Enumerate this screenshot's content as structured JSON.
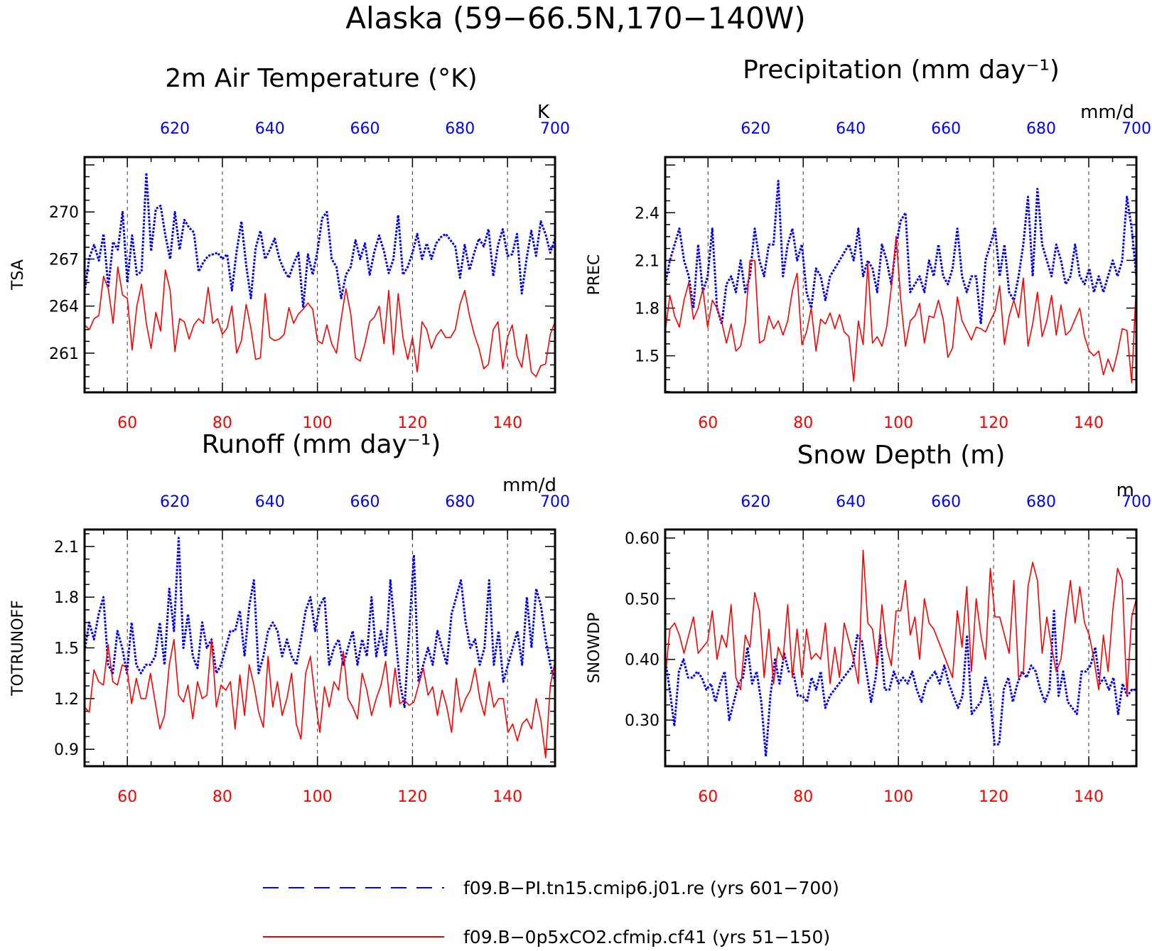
{
  "figure": {
    "title": "Alaska (59−66.5N,170−140W)"
  },
  "legend": {
    "placement": "bottom",
    "entries": [
      {
        "label": "f09.B−PI.tn15.cmip6.j01.re (yrs 601−700)",
        "color": "#0000ff",
        "style": "dashed"
      },
      {
        "label": "f09.B−0p5xCO2.cfmip.cf41 (yrs 51−150)",
        "color": "#ff0000",
        "style": "solid"
      }
    ]
  },
  "chart_data": [
    {
      "type": "line",
      "title": "2m Air Temperature (°K)",
      "ylabel": "TSA",
      "units": "K",
      "xlim": [
        51,
        150
      ],
      "x2lim": [
        601,
        700
      ],
      "ylim": [
        258.5,
        273.5
      ],
      "yticks": [
        261,
        264,
        267,
        270
      ],
      "xticks": [
        60,
        80,
        100,
        120,
        140
      ],
      "x2ticks": [
        620,
        640,
        660,
        680,
        700
      ],
      "grid": "vertical dashed at x ticks",
      "series": [
        {
          "name": "f09.B−PI.tn15.cmip6.j01.re (yrs 601−700)",
          "axis": "top",
          "color": "#0000ff",
          "dash": true,
          "values": [
            264.9,
            267.1,
            267.9,
            266.9,
            268.6,
            265.2,
            268.1,
            267.6,
            270.0,
            265.5,
            268.5,
            266.0,
            266.2,
            272.5,
            267.5,
            270.2,
            270.4,
            268.5,
            267.0,
            270.0,
            267.6,
            269.5,
            269.0,
            268.7,
            266.2,
            266.8,
            267.2,
            267.3,
            267.4,
            267.0,
            267.3,
            265.0,
            267.5,
            269.4,
            266.6,
            264.5,
            267.7,
            268.8,
            267.0,
            267.6,
            268.3,
            267.0,
            266.3,
            265.8,
            266.7,
            267.4,
            263.9,
            267.3,
            266.0,
            267.5,
            269.6,
            270.0,
            267.0,
            266.5,
            264.5,
            266.0,
            266.5,
            268.2,
            267.0,
            268.0,
            266.0,
            267.5,
            268.5,
            267.5,
            266.1,
            267.0,
            269.8,
            266.0,
            266.5,
            267.4,
            268.6,
            267.0,
            268.0,
            267.0,
            268.0,
            268.4,
            268.6,
            268.2,
            267.8,
            265.8,
            267.9,
            266.3,
            267.4,
            268.3,
            267.8,
            268.9,
            265.9,
            267.9,
            268.9,
            267.2,
            267.3,
            268.6,
            264.8,
            267.0,
            268.8,
            267.2,
            269.4,
            268.6,
            267.4,
            268.3
          ]
        },
        {
          "name": "f09.B−0p5xCO2.cfmip.cf41 (yrs 51−150)",
          "axis": "bottom",
          "color": "#ff0000",
          "dash": false,
          "values": [
            262.8,
            262.5,
            263.2,
            263.4,
            265.9,
            265.1,
            262.9,
            266.5,
            264.7,
            264.5,
            261.2,
            264.0,
            265.4,
            262.9,
            261.3,
            263.6,
            262.4,
            266.3,
            265.0,
            261.1,
            263.2,
            263.0,
            261.9,
            262.8,
            263.2,
            262.9,
            265.2,
            262.9,
            263.2,
            262.2,
            262.6,
            264.0,
            261.0,
            261.8,
            264.1,
            262.6,
            260.6,
            260.7,
            264.8,
            262.0,
            261.8,
            261.9,
            262.2,
            263.9,
            262.9,
            263.5,
            263.8,
            264.2,
            263.8,
            261.8,
            261.6,
            262.8,
            261.6,
            261.0,
            263.2,
            265.1,
            263.5,
            260.7,
            260.5,
            261.6,
            263.0,
            263.3,
            264.0,
            261.6,
            265.0,
            260.9,
            264.8,
            262.0,
            260.6,
            262.0,
            259.8,
            263.0,
            262.5,
            261.3,
            262.1,
            262.5,
            262.0,
            262.0,
            262.5,
            264.1,
            265.0,
            263.4,
            262.2,
            261.3,
            260.0,
            260.3,
            262.5,
            263.0,
            260.0,
            262.0,
            262.8,
            260.8,
            260.1,
            262.2,
            259.8,
            259.5,
            260.2,
            260.3,
            262.2,
            263.0
          ]
        }
      ]
    },
    {
      "type": "line",
      "title": "Precipitation (mm day⁻¹)",
      "ylabel": "PREC",
      "units": "mm/d",
      "xlim": [
        51,
        150
      ],
      "x2lim": [
        601,
        700
      ],
      "ylim": [
        1.27,
        2.75
      ],
      "yticks": [
        1.5,
        1.8,
        2.1,
        2.4
      ],
      "xticks": [
        60,
        80,
        100,
        120,
        140
      ],
      "x2ticks": [
        620,
        640,
        660,
        680,
        700
      ],
      "grid": "vertical dashed at x ticks",
      "series": [
        {
          "name": "f09.B−PI.tn15.cmip6.j01.re (yrs 601−700)",
          "axis": "top",
          "color": "#0000ff",
          "dash": true,
          "values": [
            1.95,
            2.1,
            2.2,
            2.3,
            2.1,
            2.0,
            1.8,
            2.2,
            1.9,
            2.0,
            2.3,
            1.8,
            1.7,
            1.95,
            2.0,
            1.9,
            2.1,
            1.9,
            2.0,
            2.3,
            2.1,
            2.0,
            2.2,
            2.2,
            2.6,
            2.0,
            2.2,
            2.3,
            2.1,
            2.2,
            1.9,
            1.8,
            2.05,
            2.0,
            1.85,
            2.0,
            2.05,
            2.1,
            2.15,
            2.2,
            2.1,
            2.3,
            2.0,
            2.1,
            2.05,
            1.9,
            2.2,
            2.1,
            1.95,
            2.2,
            2.35,
            2.4,
            1.9,
            1.95,
            2.0,
            1.9,
            2.1,
            2.0,
            2.2,
            2.0,
            1.95,
            2.05,
            2.3,
            2.0,
            1.9,
            2.0,
            2.0,
            1.7,
            2.1,
            2.2,
            2.3,
            2.0,
            2.2,
            1.9,
            1.85,
            2.0,
            2.2,
            2.5,
            2.0,
            2.55,
            2.2,
            2.1,
            2.0,
            2.2,
            2.1,
            1.95,
            2.0,
            2.2,
            2.0,
            1.95,
            2.05,
            1.9,
            2.0,
            1.9,
            2.0,
            2.1,
            2.0,
            2.1,
            2.5,
            2.3,
            2.0
          ]
        },
        {
          "name": "f09.B−0p5xCO2.cfmip.cf41 (yrs 51−150)",
          "axis": "bottom",
          "color": "#ff0000",
          "dash": false,
          "values": [
            1.65,
            1.88,
            1.75,
            1.68,
            1.85,
            1.96,
            1.73,
            1.8,
            1.92,
            1.68,
            1.85,
            1.8,
            1.71,
            1.58,
            1.7,
            1.53,
            1.56,
            1.71,
            2.1,
            2.1,
            1.58,
            1.6,
            1.75,
            1.67,
            1.72,
            1.63,
            1.72,
            1.91,
            2.02,
            1.57,
            1.65,
            1.8,
            1.53,
            1.73,
            1.7,
            1.77,
            1.67,
            1.76,
            1.65,
            1.62,
            1.34,
            1.72,
            1.57,
            2.08,
            1.58,
            1.62,
            1.56,
            1.68,
            1.93,
            2.25,
            1.85,
            1.56,
            1.72,
            1.75,
            1.83,
            1.58,
            1.75,
            1.74,
            1.85,
            1.73,
            1.49,
            1.55,
            1.87,
            1.72,
            1.66,
            1.6,
            1.68,
            1.67,
            1.65,
            1.72,
            1.78,
            1.94,
            1.57,
            1.75,
            1.85,
            1.74,
            1.99,
            1.56,
            1.7,
            1.9,
            1.62,
            1.72,
            1.88,
            1.63,
            1.82,
            1.63,
            1.66,
            1.73,
            1.8,
            1.62,
            1.53,
            1.5,
            1.53,
            1.38,
            1.48,
            1.4,
            1.52,
            1.67,
            1.66,
            1.33,
            1.96
          ]
        }
      ]
    },
    {
      "type": "line",
      "title": "Runoff (mm day⁻¹)",
      "ylabel": "TOTRUNOFF",
      "units": "mm/d",
      "xlim": [
        51,
        150
      ],
      "x2lim": [
        601,
        700
      ],
      "ylim": [
        0.8,
        2.2
      ],
      "yticks": [
        0.9,
        1.2,
        1.5,
        1.8,
        2.1
      ],
      "xticks": [
        60,
        80,
        100,
        120,
        140
      ],
      "x2ticks": [
        620,
        640,
        660,
        680,
        700
      ],
      "grid": "vertical dashed at x ticks",
      "series": [
        {
          "name": "f09.B−PI.tn15.cmip6.j01.re (yrs 601−700)",
          "axis": "top",
          "color": "#0000ff",
          "dash": true,
          "values": [
            1.48,
            1.65,
            1.55,
            1.7,
            1.8,
            1.4,
            1.35,
            1.6,
            1.5,
            1.35,
            1.65,
            1.4,
            1.35,
            1.4,
            1.4,
            1.45,
            1.65,
            1.4,
            1.85,
            1.6,
            2.15,
            1.5,
            1.7,
            1.45,
            1.38,
            1.65,
            1.5,
            1.55,
            1.35,
            1.4,
            1.5,
            1.6,
            1.6,
            1.72,
            1.45,
            1.75,
            1.9,
            1.35,
            1.45,
            1.6,
            1.65,
            1.6,
            1.45,
            1.55,
            1.45,
            1.4,
            1.55,
            1.72,
            1.8,
            1.6,
            1.75,
            1.8,
            1.4,
            1.5,
            1.55,
            1.4,
            1.5,
            1.6,
            1.4,
            1.55,
            1.45,
            1.8,
            1.45,
            1.6,
            1.45,
            1.9,
            1.6,
            1.3,
            1.15,
            1.6,
            2.05,
            1.3,
            1.4,
            1.5,
            1.4,
            1.6,
            1.5,
            1.4,
            1.7,
            1.8,
            1.9,
            1.65,
            1.5,
            1.55,
            1.4,
            1.5,
            1.9,
            1.4,
            1.6,
            1.3,
            1.4,
            1.5,
            1.6,
            1.4,
            1.8,
            1.5,
            1.85,
            1.75,
            1.55,
            1.4,
            1.3
          ]
        },
        {
          "name": "f09.B−0p5xCO2.cfmip.cf41 (yrs 51−150)",
          "axis": "bottom",
          "color": "#ff0000",
          "dash": false,
          "values": [
            1.15,
            1.12,
            1.37,
            1.3,
            1.28,
            1.52,
            1.3,
            1.28,
            1.4,
            1.38,
            1.17,
            1.32,
            1.2,
            1.2,
            1.35,
            1.18,
            1.02,
            1.1,
            1.4,
            1.55,
            1.22,
            1.18,
            1.28,
            1.08,
            1.3,
            1.2,
            1.22,
            1.55,
            1.15,
            1.28,
            1.25,
            1.3,
            1.02,
            1.34,
            1.1,
            1.4,
            1.28,
            1.12,
            1.03,
            1.45,
            1.15,
            1.3,
            1.1,
            1.2,
            1.35,
            1.05,
            0.96,
            1.35,
            1.45,
            1.2,
            1.0,
            1.27,
            1.15,
            1.3,
            1.25,
            1.48,
            1.2,
            1.15,
            1.08,
            1.35,
            1.25,
            1.1,
            1.2,
            1.28,
            1.42,
            1.15,
            1.38,
            1.17,
            1.19,
            1.16,
            1.18,
            1.28,
            1.38,
            1.22,
            1.27,
            1.1,
            1.25,
            1.15,
            1.0,
            1.32,
            1.12,
            1.2,
            1.25,
            1.38,
            1.2,
            1.1,
            1.3,
            1.15,
            1.2,
            1.2,
            1.0,
            1.05,
            0.95,
            1.05,
            1.08,
            1.02,
            1.2,
            1.07,
            0.85,
            1.28,
            1.42
          ]
        }
      ]
    },
    {
      "type": "line",
      "title": "Snow Depth (m)",
      "ylabel": "SNOWDP",
      "units": "m",
      "xlim": [
        51,
        150
      ],
      "x2lim": [
        601,
        700
      ],
      "ylim": [
        0.224,
        0.614
      ],
      "yticks": [
        0.3,
        0.4,
        0.5,
        0.6
      ],
      "xticks": [
        60,
        80,
        100,
        120,
        140
      ],
      "x2ticks": [
        620,
        640,
        660,
        680,
        700
      ],
      "grid": "vertical dashed at x ticks",
      "series": [
        {
          "name": "f09.B−PI.tn15.cmip6.j01.re (yrs 601−700)",
          "axis": "top",
          "color": "#0000ff",
          "dash": true,
          "values": [
            0.4,
            0.35,
            0.29,
            0.38,
            0.4,
            0.37,
            0.37,
            0.38,
            0.37,
            0.35,
            0.36,
            0.33,
            0.36,
            0.38,
            0.3,
            0.33,
            0.36,
            0.37,
            0.42,
            0.36,
            0.38,
            0.33,
            0.24,
            0.34,
            0.4,
            0.36,
            0.41,
            0.38,
            0.38,
            0.34,
            0.34,
            0.33,
            0.37,
            0.35,
            0.38,
            0.32,
            0.34,
            0.35,
            0.36,
            0.37,
            0.38,
            0.39,
            0.44,
            0.43,
            0.38,
            0.33,
            0.37,
            0.44,
            0.35,
            0.35,
            0.38,
            0.36,
            0.37,
            0.36,
            0.38,
            0.35,
            0.33,
            0.36,
            0.37,
            0.38,
            0.36,
            0.39,
            0.36,
            0.34,
            0.32,
            0.34,
            0.44,
            0.31,
            0.32,
            0.33,
            0.37,
            0.34,
            0.26,
            0.26,
            0.35,
            0.37,
            0.33,
            0.36,
            0.38,
            0.37,
            0.39,
            0.38,
            0.35,
            0.33,
            0.35,
            0.48,
            0.34,
            0.38,
            0.33,
            0.32,
            0.31,
            0.38,
            0.38,
            0.39,
            0.42,
            0.36,
            0.37,
            0.35,
            0.37,
            0.31,
            0.36,
            0.34,
            0.35,
            0.35
          ]
        },
        {
          "name": "f09.B−0p5xCO2.cfmip.cf41 (yrs 51−150)",
          "axis": "bottom",
          "color": "#ff0000",
          "dash": false,
          "values": [
            0.37,
            0.45,
            0.46,
            0.44,
            0.41,
            0.44,
            0.47,
            0.41,
            0.42,
            0.43,
            0.48,
            0.4,
            0.44,
            0.42,
            0.49,
            0.37,
            0.35,
            0.44,
            0.42,
            0.51,
            0.48,
            0.37,
            0.45,
            0.36,
            0.42,
            0.4,
            0.49,
            0.37,
            0.45,
            0.37,
            0.45,
            0.4,
            0.41,
            0.4,
            0.46,
            0.36,
            0.42,
            0.37,
            0.46,
            0.43,
            0.4,
            0.36,
            0.58,
            0.46,
            0.45,
            0.39,
            0.49,
            0.42,
            0.39,
            0.48,
            0.48,
            0.53,
            0.44,
            0.47,
            0.4,
            0.5,
            0.46,
            0.45,
            0.43,
            0.41,
            0.39,
            0.37,
            0.48,
            0.42,
            0.52,
            0.38,
            0.5,
            0.44,
            0.4,
            0.55,
            0.47,
            0.47,
            0.44,
            0.41,
            0.53,
            0.37,
            0.38,
            0.52,
            0.56,
            0.53,
            0.41,
            0.47,
            0.42,
            0.38,
            0.4,
            0.47,
            0.53,
            0.46,
            0.52,
            0.46,
            0.44,
            0.4,
            0.35,
            0.44,
            0.38,
            0.48,
            0.55,
            0.53,
            0.34,
            0.47,
            0.5
          ]
        }
      ]
    }
  ]
}
